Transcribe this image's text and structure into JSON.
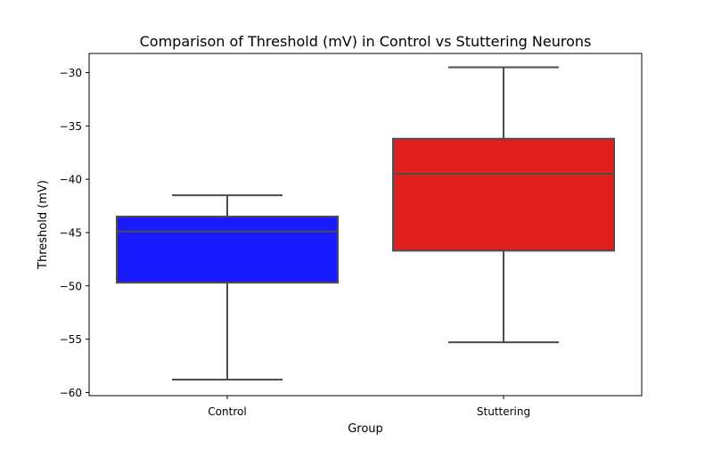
{
  "chart_data": {
    "type": "box",
    "title": "Comparison of Threshold (mV) in Control vs Stuttering Neurons",
    "xlabel": "Group",
    "ylabel": "Threshold (mV)",
    "ylim": [
      -60.3,
      -28.2
    ],
    "yticks": [
      -60,
      -55,
      -50,
      -45,
      -40,
      -35,
      -30
    ],
    "ytick_labels": [
      "−60",
      "−55",
      "−50",
      "−45",
      "−40",
      "−35",
      "−30"
    ],
    "grid": false,
    "categories": [
      "Control",
      "Stuttering"
    ],
    "boxes": [
      {
        "category": "Control",
        "whisker_low": -58.8,
        "q1": -49.7,
        "median": -44.9,
        "q3": -43.5,
        "whisker_high": -41.5,
        "color": "#1a1aff"
      },
      {
        "category": "Stuttering",
        "whisker_low": -55.3,
        "q1": -46.7,
        "median": -39.5,
        "q3": -36.2,
        "whisker_high": -29.5,
        "color": "#e01e1e"
      }
    ],
    "line_color": "#4d4d4d"
  }
}
